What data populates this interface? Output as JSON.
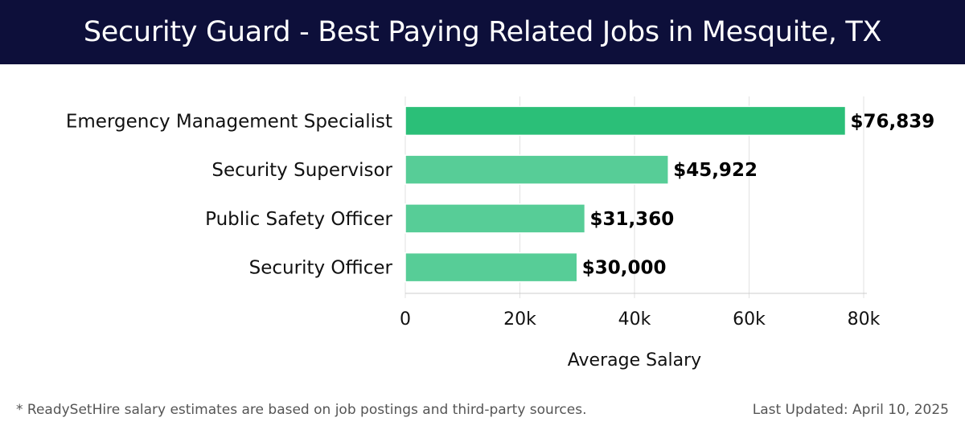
{
  "header": {
    "title": "Security Guard - Best Paying Related Jobs in Mesquite, TX"
  },
  "chart_data": {
    "type": "bar",
    "orientation": "horizontal",
    "title": "Security Guard - Best Paying Related Jobs in Mesquite, TX",
    "xlabel": "Average Salary",
    "ylabel": "",
    "xlim": [
      0,
      80000
    ],
    "x_ticks": [
      0,
      20000,
      40000,
      60000,
      80000
    ],
    "x_tick_labels": [
      "0",
      "20k",
      "40k",
      "60k",
      "80k"
    ],
    "grid": true,
    "categories": [
      "Emergency Management Specialist",
      "Security Supervisor",
      "Public Safety Officer",
      "Security Officer"
    ],
    "values": [
      76839,
      45922,
      31360,
      30000
    ],
    "value_labels": [
      "$76,839",
      "$45,922",
      "$31,360",
      "$30,000"
    ],
    "colors": {
      "highlight_bar": "#2bbf78",
      "bar": "#57cd97",
      "grid": "#e2e2e2",
      "axis": "#cccccc"
    }
  },
  "footer": {
    "note": "* ReadySetHire salary estimates are based on job postings and third-party sources.",
    "updated": "Last Updated: April 10, 2025"
  }
}
